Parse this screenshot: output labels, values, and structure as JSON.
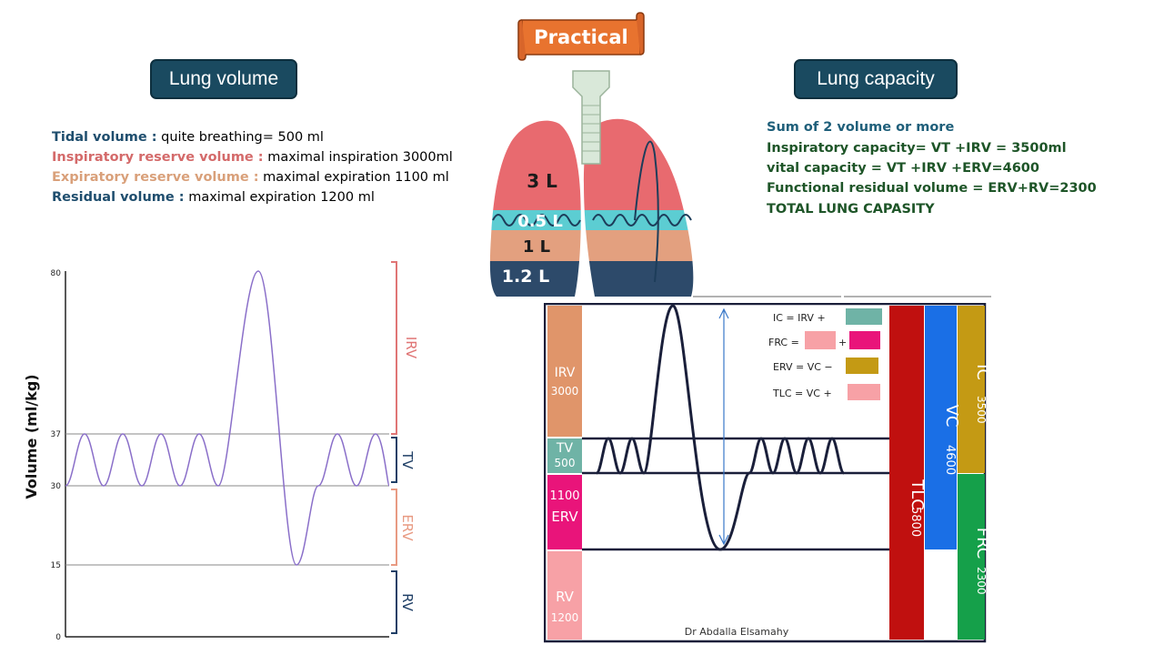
{
  "banner": {
    "label": "Practical"
  },
  "lung_volume": {
    "heading": "Lung volume",
    "definitions": [
      {
        "term": "Tidal volume :",
        "desc": " quite breathing= 500 ml",
        "color": "#1f4e6e"
      },
      {
        "term": "Inspiratory reserve volume  :",
        "desc": " maximal inspiration 3000ml",
        "color": "#d46a6a"
      },
      {
        "term": "Expiratory reserve volume :",
        "desc": " maximal expiration 1100 ml",
        "color": "#d9a07a"
      },
      {
        "term": "Residual  volume :",
        "desc": " maximal expiration 1200 ml",
        "color": "#1f4e6e"
      }
    ]
  },
  "lung_capacity": {
    "heading": "Lung capacity",
    "lines": [
      "Sum of 2 volume or more",
      "Inspiratory capacity= VT +IRV = 3500ml",
      "vital capacity = VT +IRV +ERV=4600",
      "Functional residual volume = ERV+RV=2300",
      "TOTAL LUNG CAPASITY"
    ],
    "first_line_color": "#1f5f7a",
    "text_color": "#1e5528"
  },
  "lung_illustration": {
    "labels": [
      "3 L",
      "0.5 L",
      "1 L",
      "1.2 L"
    ]
  },
  "volume_chart": {
    "ylabel": "Volume (ml/kg)",
    "yticks": [
      "80",
      "37",
      "30",
      "15",
      "0"
    ],
    "ytick_values": [
      80,
      37,
      30,
      15,
      0
    ],
    "ylim": [
      0,
      80
    ],
    "bracket_labels": [
      "IRV",
      "TV",
      "ERV",
      "RV"
    ],
    "colors": {
      "IRV": "#e07575",
      "TV": "#1f3f66",
      "ERV": "#e89a82",
      "RV": "#1f3f66",
      "trace": "#8a6fc9"
    }
  },
  "capacity_diagram": {
    "volume_blocks": [
      {
        "name": "IRV",
        "value": "3000",
        "color": "#e0956a"
      },
      {
        "name": "TV",
        "value": "500",
        "color": "#6fb3a6"
      },
      {
        "name": "1100",
        "value": "ERV",
        "color": "#e9147a"
      },
      {
        "name": "RV",
        "value": "1200",
        "color": "#f7a1a6"
      }
    ],
    "legend": [
      {
        "text": "IC = IRV +",
        "color": "#6fb3a6",
        "color2": ""
      },
      {
        "text": "FRC =",
        "text2": "+",
        "color": "#f7a1a6",
        "color2": "#e9147a"
      },
      {
        "text": "ERV = VC −",
        "color": "#c49a14",
        "color2": ""
      },
      {
        "text": "TLC = VC +",
        "color": "#f7a1a6",
        "color2": ""
      }
    ],
    "capacity_bars": [
      {
        "label": "TLC",
        "value": "5800",
        "color": "#c0100f"
      },
      {
        "label": "VC",
        "value": "4600",
        "color": "#1a6fe6"
      },
      {
        "label": "IC",
        "value": "3500",
        "color": "#c49a14"
      },
      {
        "label": "FRC",
        "value": "2300",
        "color": "#15a04a"
      }
    ],
    "credit": "Dr Abdalla Elsamahy"
  }
}
